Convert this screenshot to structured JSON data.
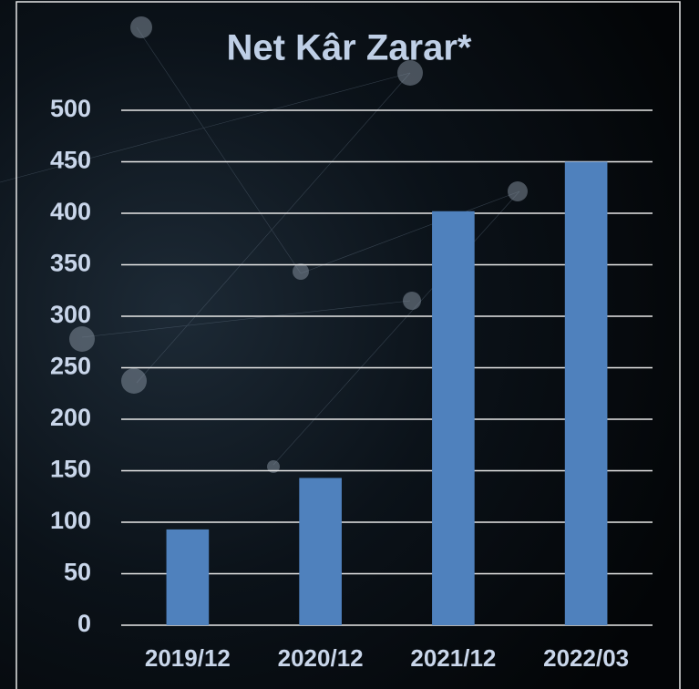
{
  "chart_data": {
    "type": "bar",
    "title": "Net Kâr Zarar*",
    "categories": [
      "2019/12",
      "2020/12",
      "2021/12",
      "2022/03"
    ],
    "values": [
      93,
      143,
      402,
      450
    ],
    "color": "#4f81bd",
    "ylim": [
      0,
      500
    ],
    "yticks": [
      0,
      50,
      100,
      150,
      200,
      250,
      300,
      350,
      400,
      450,
      500
    ],
    "grid": true
  }
}
